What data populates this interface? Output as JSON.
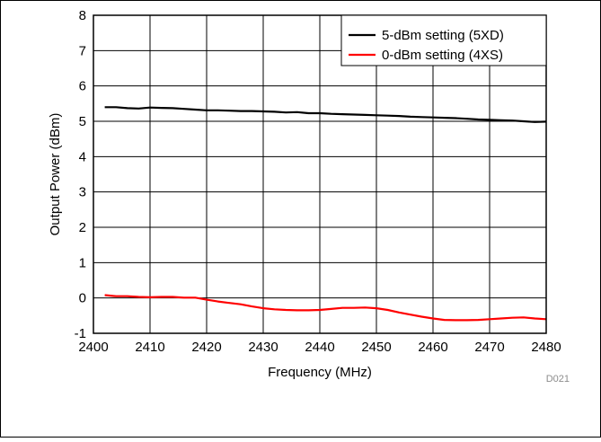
{
  "chart_data": {
    "type": "line",
    "xlabel": "Frequency (MHz)",
    "ylabel": "Output Power (dBm)",
    "xlim": [
      2400,
      2480
    ],
    "ylim": [
      -1,
      8
    ],
    "x_ticks": [
      "2400",
      "2410",
      "2420",
      "2430",
      "2440",
      "2450",
      "2460",
      "2470",
      "2480"
    ],
    "y_ticks": [
      "-1",
      "0",
      "1",
      "2",
      "3",
      "4",
      "5",
      "6",
      "7",
      "8"
    ],
    "grid": true,
    "legend_position": "top-right",
    "figure_id": "D021",
    "series": [
      {
        "name": "5-dBm setting (5XD)",
        "color": "#000000",
        "x": [
          2402,
          2404,
          2406,
          2408,
          2410,
          2412,
          2414,
          2416,
          2418,
          2420,
          2422,
          2424,
          2426,
          2428,
          2430,
          2432,
          2434,
          2436,
          2438,
          2440,
          2442,
          2444,
          2446,
          2448,
          2450,
          2452,
          2454,
          2456,
          2458,
          2460,
          2462,
          2464,
          2466,
          2468,
          2470,
          2472,
          2474,
          2476,
          2478,
          2480
        ],
        "y": [
          5.4,
          5.4,
          5.37,
          5.36,
          5.39,
          5.38,
          5.37,
          5.35,
          5.33,
          5.31,
          5.31,
          5.3,
          5.29,
          5.29,
          5.28,
          5.27,
          5.25,
          5.26,
          5.23,
          5.23,
          5.21,
          5.2,
          5.19,
          5.18,
          5.17,
          5.16,
          5.15,
          5.13,
          5.12,
          5.11,
          5.1,
          5.09,
          5.07,
          5.05,
          5.04,
          5.03,
          5.02,
          5.0,
          4.98,
          4.99
        ]
      },
      {
        "name": "0-dBm setting (4XS)",
        "color": "#ff0000",
        "x": [
          2402,
          2404,
          2406,
          2408,
          2410,
          2412,
          2414,
          2416,
          2418,
          2420,
          2422,
          2424,
          2426,
          2428,
          2430,
          2432,
          2434,
          2436,
          2438,
          2440,
          2442,
          2444,
          2446,
          2448,
          2450,
          2452,
          2454,
          2456,
          2458,
          2460,
          2462,
          2464,
          2466,
          2468,
          2470,
          2472,
          2474,
          2476,
          2478,
          2480
        ],
        "y": [
          0.08,
          0.05,
          0.05,
          0.03,
          0.02,
          0.03,
          0.03,
          0.01,
          0.01,
          -0.05,
          -0.1,
          -0.14,
          -0.18,
          -0.24,
          -0.29,
          -0.32,
          -0.34,
          -0.35,
          -0.35,
          -0.34,
          -0.31,
          -0.28,
          -0.28,
          -0.27,
          -0.29,
          -0.34,
          -0.41,
          -0.47,
          -0.53,
          -0.58,
          -0.62,
          -0.63,
          -0.63,
          -0.62,
          -0.6,
          -0.58,
          -0.56,
          -0.55,
          -0.58,
          -0.6
        ]
      }
    ]
  }
}
